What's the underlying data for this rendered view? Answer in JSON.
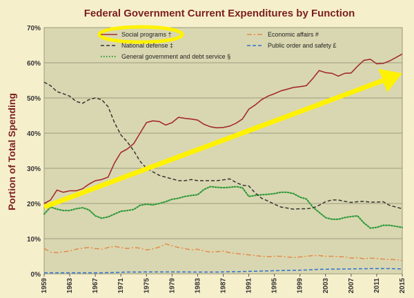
{
  "chart_data": {
    "type": "line",
    "title": "Federal Government Current Expenditures by Function",
    "xlabel": "",
    "ylabel": "Portion of Total Spending",
    "ylim": [
      0,
      70
    ],
    "xlim": [
      1959,
      2015
    ],
    "grid": true,
    "legend_position": "top",
    "x_ticks": [
      "1959",
      "1963",
      "1967",
      "1971",
      "1975",
      "1979",
      "1983",
      "1987",
      "1991",
      "1995",
      "1999",
      "2003",
      "2007",
      "2011",
      "2015"
    ],
    "y_ticks": [
      "0%",
      "10%",
      "20%",
      "30%",
      "40%",
      "50%",
      "60%",
      "70%"
    ],
    "x": [
      1959,
      1960,
      1961,
      1962,
      1963,
      1964,
      1965,
      1966,
      1967,
      1968,
      1969,
      1970,
      1971,
      1972,
      1973,
      1974,
      1975,
      1976,
      1977,
      1978,
      1979,
      1980,
      1981,
      1982,
      1983,
      1984,
      1985,
      1986,
      1987,
      1988,
      1989,
      1990,
      1991,
      1992,
      1993,
      1994,
      1995,
      1996,
      1997,
      1998,
      1999,
      2000,
      2001,
      2002,
      2003,
      2004,
      2005,
      2006,
      2007,
      2008,
      2009,
      2010,
      2011,
      2012,
      2013,
      2014,
      2015
    ],
    "series": [
      {
        "name": "Social programs †",
        "color": "#a32b2b",
        "style": "solid",
        "values": [
          20,
          21,
          23.8,
          23.2,
          23.6,
          23.6,
          24.2,
          25.5,
          26.5,
          26.8,
          27.5,
          31.5,
          34.5,
          35.5,
          37,
          40,
          43,
          43.5,
          43.3,
          42.3,
          43,
          44.5,
          44.2,
          44,
          43.7,
          42.5,
          41.8,
          41.5,
          41.6,
          42,
          42.8,
          44,
          46.8,
          48,
          49.5,
          50.5,
          51.2,
          52,
          52.5,
          53,
          53.2,
          53.5,
          55.5,
          57.8,
          57.2,
          57,
          56.2,
          57,
          57.1,
          59,
          60.7,
          61,
          59.7,
          59.8,
          60.5,
          61.5,
          62.5
        ]
      },
      {
        "name": "National defense ‡",
        "color": "#333333",
        "style": "dashed",
        "values": [
          54.5,
          53.5,
          51.8,
          51.2,
          50.5,
          49,
          48.5,
          49.5,
          50,
          49.5,
          47.5,
          43,
          39.5,
          37.5,
          35,
          32,
          30,
          29,
          28,
          27.5,
          27,
          26.5,
          26.5,
          26.8,
          26.5,
          26.5,
          26.5,
          26.5,
          26.7,
          27,
          26,
          25.2,
          25,
          23,
          21.5,
          20.7,
          19.8,
          19,
          18.7,
          18.4,
          18.5,
          18.5,
          18.7,
          19.5,
          20.5,
          21,
          21,
          20.6,
          20.3,
          20.5,
          20.6,
          20.4,
          20.4,
          20.5,
          19.5,
          19,
          18.5
        ]
      },
      {
        "name": "General government and debt service §",
        "color": "#2e9a3a",
        "style": "dotted",
        "values": [
          17,
          19,
          18.4,
          18,
          18,
          18.5,
          18.8,
          18.2,
          16.5,
          15.8,
          16.2,
          17,
          17.8,
          18,
          18.3,
          19.5,
          19.8,
          19.6,
          20,
          20.5,
          21.2,
          21.5,
          22,
          22.3,
          22.5,
          24,
          24.8,
          24.6,
          24.5,
          24.6,
          24.8,
          24.5,
          22,
          22.3,
          22.5,
          22.6,
          22.8,
          23.2,
          23.2,
          22.8,
          21.8,
          21.3,
          19,
          17.5,
          16,
          15.5,
          15.5,
          16,
          16.3,
          16.5,
          14.5,
          13,
          13.2,
          13.8,
          13.8,
          13.5,
          13.2
        ]
      },
      {
        "name": "Economic affairs #",
        "color": "#e38a4a",
        "style": "dashdot",
        "values": [
          7.2,
          6.2,
          6,
          6.3,
          6.5,
          7,
          7.3,
          7.5,
          7.2,
          7,
          7.5,
          7.8,
          7.5,
          7.2,
          7.5,
          7.3,
          6.8,
          7.1,
          7.6,
          8.5,
          8,
          7.5,
          7.2,
          6.8,
          7,
          6.5,
          6.2,
          6.3,
          6.5,
          6,
          5.8,
          5.6,
          5.4,
          5.2,
          5,
          4.9,
          5,
          5,
          4.8,
          4.6,
          4.8,
          5,
          5.2,
          5.2,
          5,
          5,
          4.9,
          4.8,
          4.5,
          4.6,
          4.3,
          4.5,
          4.4,
          4.2,
          4.1,
          4,
          3.8
        ]
      },
      {
        "name": "Public order and safety £",
        "color": "#2a6fcf",
        "style": "dashed",
        "values": [
          0.3,
          0.3,
          0.3,
          0.3,
          0.3,
          0.3,
          0.3,
          0.3,
          0.3,
          0.3,
          0.35,
          0.4,
          0.45,
          0.5,
          0.5,
          0.5,
          0.55,
          0.55,
          0.55,
          0.55,
          0.55,
          0.55,
          0.55,
          0.5,
          0.5,
          0.5,
          0.5,
          0.5,
          0.55,
          0.6,
          0.6,
          0.65,
          0.7,
          0.75,
          0.8,
          0.85,
          0.9,
          0.95,
          1,
          1,
          1.05,
          1.1,
          1.2,
          1.3,
          1.3,
          1.35,
          1.35,
          1.4,
          1.4,
          1.45,
          1.45,
          1.5,
          1.5,
          1.5,
          1.5,
          1.45,
          1.4
        ]
      }
    ],
    "annotations": [
      {
        "type": "highlight-ellipse",
        "target": "Social programs †",
        "color": "#fff200"
      },
      {
        "type": "arrow",
        "from_x": 1959,
        "from_y": 19,
        "to_x": 2015,
        "to_y": 57,
        "color": "#fff200"
      }
    ]
  }
}
